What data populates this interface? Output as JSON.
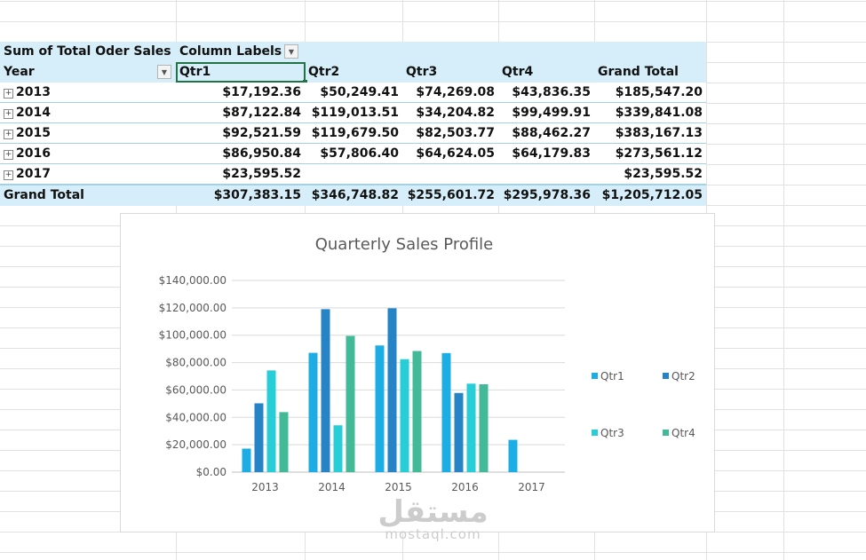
{
  "pivot": {
    "value_label": "Sum of Total Oder Sales",
    "column_labels": "Column Labels",
    "row_label": "Year",
    "columns": [
      "Qtr1",
      "Qtr2",
      "Qtr3",
      "Qtr4",
      "Grand Total"
    ],
    "rows": [
      {
        "year": "2013",
        "values": [
          "$17,192.36",
          "$50,249.41",
          "$74,269.08",
          "$43,836.35",
          "$185,547.20"
        ]
      },
      {
        "year": "2014",
        "values": [
          "$87,122.84",
          "$119,013.51",
          "$34,204.82",
          "$99,499.91",
          "$339,841.08"
        ]
      },
      {
        "year": "2015",
        "values": [
          "$92,521.59",
          "$119,679.50",
          "$82,503.77",
          "$88,462.27",
          "$383,167.13"
        ]
      },
      {
        "year": "2016",
        "values": [
          "$86,950.84",
          "$57,806.40",
          "$64,624.05",
          "$64,179.83",
          "$273,561.12"
        ]
      },
      {
        "year": "2017",
        "values": [
          "$23,595.52",
          "",
          "",
          "",
          "$23,595.52"
        ]
      }
    ],
    "total_label": "Grand Total",
    "totals": [
      "$307,383.15",
      "$346,748.82",
      "$255,601.72",
      "$295,978.36",
      "$1,205,712.05"
    ]
  },
  "chart_data": {
    "type": "bar",
    "title": "Quarterly Sales Profile",
    "categories": [
      "2013",
      "2014",
      "2015",
      "2016",
      "2017"
    ],
    "series": [
      {
        "name": "Qtr1",
        "color": "#1CADE4",
        "values": [
          17192.36,
          87122.84,
          92521.59,
          86950.84,
          23595.52
        ]
      },
      {
        "name": "Qtr2",
        "color": "#2683C6",
        "values": [
          50249.41,
          119013.51,
          119679.5,
          57806.4,
          null
        ]
      },
      {
        "name": "Qtr3",
        "color": "#27CED7",
        "values": [
          74269.08,
          34204.82,
          82503.77,
          64624.05,
          null
        ]
      },
      {
        "name": "Qtr4",
        "color": "#42BA97",
        "values": [
          43836.35,
          99499.91,
          88462.27,
          64179.83,
          null
        ]
      }
    ],
    "ylim": [
      0,
      140000
    ],
    "yticks": [
      "$0.00",
      "$20,000.00",
      "$40,000.00",
      "$60,000.00",
      "$80,000.00",
      "$100,000.00",
      "$120,000.00",
      "$140,000.00"
    ],
    "grid": true,
    "legend": "right"
  },
  "watermark": {
    "arabic": "مستقل",
    "latin": "mostaql.com"
  }
}
